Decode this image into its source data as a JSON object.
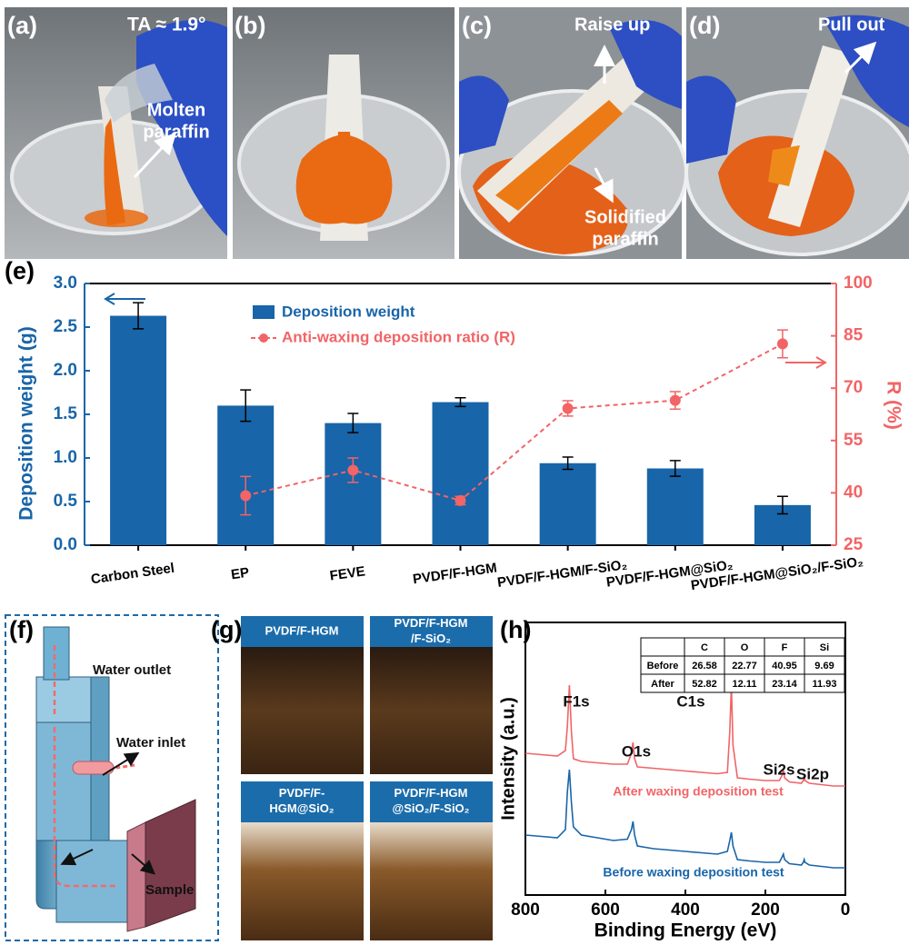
{
  "panels": {
    "labels": [
      "(a)",
      "(b)",
      "(c)",
      "(d)",
      "(e)",
      "(f)",
      "(g)",
      "(h)"
    ],
    "a": {
      "angle": "TA ≈ 1.9°",
      "note": [
        "Molten",
        "paraffin"
      ]
    },
    "c": {
      "raise": "Raise up",
      "note": [
        "Solidified",
        "paraffin"
      ]
    },
    "d": {
      "pull": "Pull out"
    },
    "f": {
      "outlet": "Water outlet",
      "inlet": "Water inlet",
      "sample": "Sample"
    },
    "g": {
      "tiles": [
        [
          "PVDF/F-HGM"
        ],
        [
          "PVDF/F-HGM",
          "/F-SiO₂"
        ],
        [
          "PVDF/F-",
          "HGM@SiO₂"
        ],
        [
          "PVDF/F-HGM",
          "@SiO₂/F-SiO₂"
        ]
      ]
    }
  },
  "chart_data": [
    {
      "type": "bar",
      "categories": [
        "Carbon Steel",
        "EP",
        "FEVE",
        "PVDF/F-HGM",
        "PVDF/F-HGM/F-SiO₂",
        "PVDF/F-HGM@SiO₂",
        "PVDF/F-HGM@SiO₂/F-SiO₂"
      ],
      "series": [
        {
          "name": "Deposition weight",
          "type": "bar",
          "color": "#1865a9",
          "axis": "y",
          "values": [
            2.63,
            1.6,
            1.4,
            1.64,
            0.94,
            0.88,
            0.46
          ],
          "errors": [
            0.15,
            0.18,
            0.11,
            0.05,
            0.07,
            0.09,
            0.1
          ]
        },
        {
          "name": "Anti-waxing deposition ratio (R)",
          "type": "line",
          "color": "#f26466",
          "axis": "y2",
          "values": [
            null,
            39.2,
            46.5,
            37.8,
            64.2,
            66.5,
            82.7
          ],
          "errors": [
            null,
            5.5,
            3.5,
            1.2,
            2.2,
            2.5,
            4.0
          ]
        }
      ],
      "ylabel": "Deposition weight (g)",
      "y2label": "R (%)",
      "ylim": [
        0,
        3
      ],
      "yticks": [
        {
          "value": 0,
          "label": "0.0"
        },
        0.5,
        {
          "value": 1,
          "label": "1.0"
        },
        1.5,
        {
          "value": 2,
          "label": "2.0"
        },
        2.5,
        {
          "value": 3,
          "label": "3.0"
        }
      ],
      "y2lim": [
        25,
        100
      ],
      "y2ticks": [
        25,
        40,
        55,
        70,
        85,
        100
      ],
      "legend": "top-center"
    },
    {
      "type": "line",
      "x": [
        800,
        760,
        720,
        700,
        695,
        690,
        685,
        680,
        660,
        620,
        580,
        545,
        535,
        531,
        527,
        520,
        480,
        440,
        400,
        360,
        320,
        295,
        289,
        285,
        281,
        270,
        240,
        200,
        165,
        158,
        155,
        152,
        140,
        110,
        105,
        103,
        101,
        90,
        60,
        30,
        0
      ],
      "series": [
        {
          "name": "After waxing deposition test",
          "color": "#f26466",
          "values": [
            52,
            51.5,
            51,
            53,
            62,
            77,
            60,
            50,
            49,
            48.5,
            48,
            48,
            52,
            56,
            50,
            47,
            46.5,
            46,
            45.5,
            45,
            44.5,
            45,
            60,
            77,
            55,
            43,
            42.5,
            42,
            42,
            44,
            46,
            43,
            41.5,
            41,
            42,
            44,
            42,
            41,
            40.5,
            40,
            40
          ]
        },
        {
          "name": "Before waxing deposition test",
          "color": "#1865a9",
          "values": [
            22,
            21.5,
            21,
            24,
            38,
            46,
            34,
            25,
            22,
            21,
            20,
            20.5,
            24,
            27,
            22,
            18,
            17,
            16.5,
            16,
            15.5,
            15,
            16,
            20,
            23,
            18,
            13,
            12.5,
            12,
            12,
            14,
            15,
            13,
            11.5,
            11,
            12,
            13,
            12,
            11,
            10.5,
            10,
            10
          ]
        }
      ],
      "xlabel": "Binding Energy (eV)",
      "ylabel": "Intensity (a.u.)",
      "xlim": [
        800,
        0
      ],
      "xticks": [
        800,
        600,
        400,
        200,
        0
      ],
      "ylim": [
        0,
        100
      ],
      "annotations": [
        "F1s",
        "O1s",
        "C1s",
        "Si2s",
        "Si2p"
      ],
      "table": {
        "columns": [
          "C",
          "O",
          "F",
          "Si"
        ],
        "rows": [
          {
            "label": "Before",
            "values": [
              26.58,
              22.77,
              40.95,
              9.69
            ]
          },
          {
            "label": "After",
            "values": [
              52.82,
              12.11,
              23.14,
              11.93
            ]
          }
        ]
      }
    }
  ]
}
